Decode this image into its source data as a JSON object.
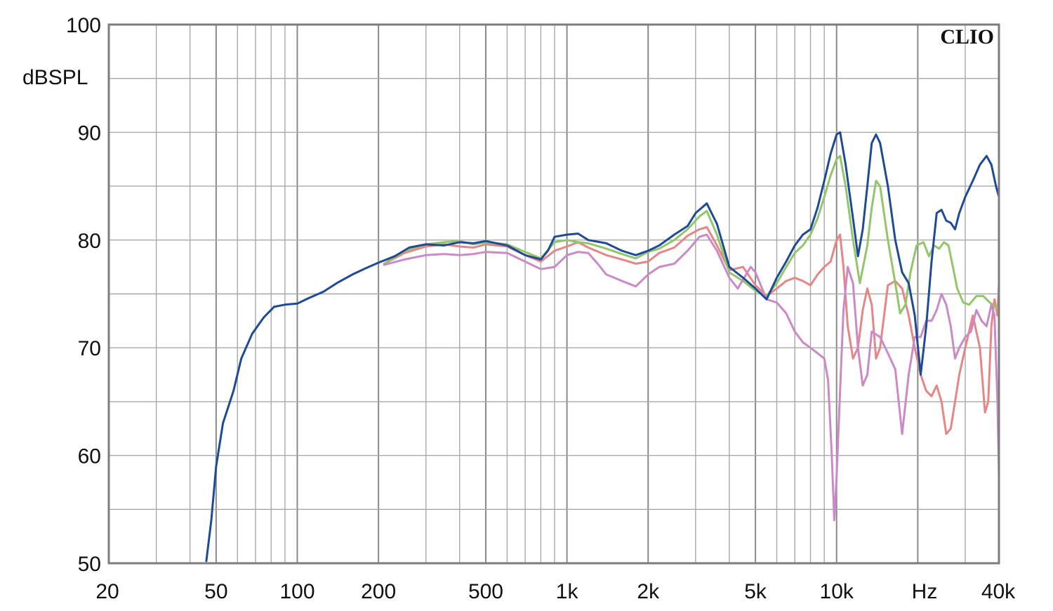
{
  "chart_data": {
    "type": "line",
    "title": "",
    "xlabel": "Hz",
    "ylabel": "dBSPL",
    "brand": "CLIO",
    "x_scale": "log",
    "xlim": [
      20,
      40000
    ],
    "ylim": [
      50,
      100
    ],
    "grid": true,
    "legend": "none",
    "x_ticks": [
      {
        "value": 20,
        "label": "20"
      },
      {
        "value": 50,
        "label": "50"
      },
      {
        "value": 100,
        "label": "100"
      },
      {
        "value": 200,
        "label": "200"
      },
      {
        "value": 500,
        "label": "500"
      },
      {
        "value": 1000,
        "label": "1k"
      },
      {
        "value": 2000,
        "label": "2k"
      },
      {
        "value": 5000,
        "label": "5k"
      },
      {
        "value": 10000,
        "label": "10k"
      },
      {
        "value": 40000,
        "label": "40k"
      }
    ],
    "y_ticks": [
      {
        "value": 100,
        "label": "100"
      },
      {
        "value": 90,
        "label": "90"
      },
      {
        "value": 80,
        "label": "80"
      },
      {
        "value": 70,
        "label": "70"
      },
      {
        "value": 60,
        "label": "60"
      },
      {
        "value": 50,
        "label": "50"
      }
    ],
    "series": [
      {
        "color": "#e88585",
        "points": [
          [
            210,
            77.8
          ],
          [
            250,
            78.8
          ],
          [
            300,
            79.4
          ],
          [
            350,
            79.6
          ],
          [
            400,
            79.4
          ],
          [
            450,
            79.3
          ],
          [
            500,
            79.6
          ],
          [
            600,
            79.4
          ],
          [
            700,
            78.6
          ],
          [
            800,
            78.0
          ],
          [
            900,
            79.0
          ],
          [
            1000,
            79.4
          ],
          [
            1100,
            79.8
          ],
          [
            1200,
            79.3
          ],
          [
            1400,
            78.6
          ],
          [
            1600,
            78.2
          ],
          [
            1800,
            77.8
          ],
          [
            2000,
            78.0
          ],
          [
            2200,
            78.8
          ],
          [
            2500,
            79.3
          ],
          [
            2800,
            80.4
          ],
          [
            3100,
            81.0
          ],
          [
            3300,
            81.2
          ],
          [
            3600,
            79.5
          ],
          [
            4000,
            77.2
          ],
          [
            4500,
            77.5
          ],
          [
            5000,
            75.8
          ],
          [
            5500,
            74.8
          ],
          [
            6000,
            75.5
          ],
          [
            6500,
            76.2
          ],
          [
            7000,
            76.5
          ],
          [
            7500,
            76.2
          ],
          [
            8000,
            75.8
          ],
          [
            8500,
            76.8
          ],
          [
            9000,
            77.5
          ],
          [
            9500,
            78.0
          ],
          [
            10000,
            80.0
          ],
          [
            10300,
            80.5
          ],
          [
            10600,
            77.5
          ],
          [
            11000,
            72.0
          ],
          [
            11500,
            69.0
          ],
          [
            12000,
            70.0
          ],
          [
            12500,
            73.5
          ],
          [
            13000,
            75.5
          ],
          [
            13500,
            74.0
          ],
          [
            14000,
            69.0
          ],
          [
            14500,
            70.0
          ],
          [
            15000,
            73.0
          ],
          [
            15500,
            75.8
          ],
          [
            16500,
            76.2
          ],
          [
            17500,
            75.5
          ],
          [
            18500,
            73.0
          ],
          [
            19500,
            70.0
          ],
          [
            20500,
            67.5
          ],
          [
            21500,
            66.0
          ],
          [
            22500,
            65.5
          ],
          [
            23500,
            66.5
          ],
          [
            24500,
            65.0
          ],
          [
            25500,
            62.0
          ],
          [
            26500,
            62.5
          ],
          [
            27500,
            65.0
          ],
          [
            28500,
            67.5
          ],
          [
            30000,
            70.0
          ],
          [
            32000,
            73.0
          ],
          [
            34000,
            70.0
          ],
          [
            35500,
            64.0
          ],
          [
            36500,
            65.0
          ],
          [
            37500,
            72.0
          ],
          [
            38500,
            74.5
          ],
          [
            39500,
            73.0
          ],
          [
            40000,
            76.0
          ]
        ]
      },
      {
        "color": "#93c56a",
        "points": [
          [
            210,
            77.8
          ],
          [
            250,
            79.0
          ],
          [
            300,
            79.6
          ],
          [
            350,
            79.8
          ],
          [
            400,
            79.9
          ],
          [
            450,
            79.6
          ],
          [
            500,
            79.8
          ],
          [
            600,
            79.6
          ],
          [
            700,
            78.9
          ],
          [
            800,
            78.3
          ],
          [
            900,
            79.8
          ],
          [
            1000,
            80.0
          ],
          [
            1100,
            79.8
          ],
          [
            1200,
            79.7
          ],
          [
            1400,
            79.2
          ],
          [
            1600,
            78.7
          ],
          [
            1800,
            78.3
          ],
          [
            2000,
            78.9
          ],
          [
            2200,
            79.2
          ],
          [
            2500,
            80.0
          ],
          [
            2800,
            81.0
          ],
          [
            3100,
            82.2
          ],
          [
            3300,
            82.7
          ],
          [
            3600,
            80.5
          ],
          [
            4000,
            77.0
          ],
          [
            4500,
            76.2
          ],
          [
            5000,
            75.3
          ],
          [
            5500,
            74.8
          ],
          [
            6000,
            76.0
          ],
          [
            6500,
            77.5
          ],
          [
            7000,
            78.8
          ],
          [
            7500,
            79.5
          ],
          [
            8000,
            80.5
          ],
          [
            8500,
            82.0
          ],
          [
            9000,
            84.0
          ],
          [
            9500,
            86.0
          ],
          [
            10000,
            87.5
          ],
          [
            10300,
            87.8
          ],
          [
            10800,
            85.0
          ],
          [
            11500,
            80.0
          ],
          [
            12200,
            76.0
          ],
          [
            13000,
            79.5
          ],
          [
            13500,
            83.0
          ],
          [
            14000,
            85.5
          ],
          [
            14500,
            85.0
          ],
          [
            15500,
            80.0
          ],
          [
            16500,
            76.0
          ],
          [
            17200,
            73.2
          ],
          [
            18000,
            74.0
          ],
          [
            18800,
            77.0
          ],
          [
            19800,
            79.5
          ],
          [
            21000,
            79.8
          ],
          [
            22000,
            78.5
          ],
          [
            23000,
            79.5
          ],
          [
            24000,
            79.2
          ],
          [
            25000,
            79.8
          ],
          [
            26000,
            79.5
          ],
          [
            27000,
            77.5
          ],
          [
            28000,
            75.5
          ],
          [
            29500,
            74.2
          ],
          [
            31000,
            74.0
          ],
          [
            33000,
            74.8
          ],
          [
            35000,
            74.8
          ],
          [
            37000,
            74.2
          ],
          [
            39000,
            73.8
          ],
          [
            40000,
            73.5
          ]
        ]
      },
      {
        "color": "#cc89c8",
        "points": [
          [
            210,
            77.7
          ],
          [
            250,
            78.2
          ],
          [
            300,
            78.6
          ],
          [
            350,
            78.7
          ],
          [
            400,
            78.6
          ],
          [
            450,
            78.7
          ],
          [
            500,
            78.9
          ],
          [
            600,
            78.8
          ],
          [
            700,
            78.0
          ],
          [
            800,
            77.3
          ],
          [
            900,
            77.5
          ],
          [
            1000,
            78.6
          ],
          [
            1100,
            78.9
          ],
          [
            1200,
            78.8
          ],
          [
            1300,
            77.8
          ],
          [
            1400,
            76.8
          ],
          [
            1500,
            76.5
          ],
          [
            1600,
            76.2
          ],
          [
            1800,
            75.7
          ],
          [
            2000,
            76.8
          ],
          [
            2200,
            77.5
          ],
          [
            2500,
            77.8
          ],
          [
            2800,
            79.0
          ],
          [
            3100,
            80.3
          ],
          [
            3300,
            80.5
          ],
          [
            3600,
            79.0
          ],
          [
            4000,
            76.5
          ],
          [
            4300,
            75.5
          ],
          [
            4800,
            77.5
          ],
          [
            5000,
            77.0
          ],
          [
            5500,
            74.5
          ],
          [
            6000,
            74.2
          ],
          [
            6500,
            73.2
          ],
          [
            7000,
            71.5
          ],
          [
            7500,
            70.5
          ],
          [
            8000,
            70.0
          ],
          [
            8500,
            69.5
          ],
          [
            9000,
            69.0
          ],
          [
            9300,
            67.0
          ],
          [
            9600,
            60.0
          ],
          [
            9800,
            54.0
          ],
          [
            10000,
            58.0
          ],
          [
            10300,
            66.0
          ],
          [
            10600,
            73.5
          ],
          [
            11000,
            77.5
          ],
          [
            11500,
            76.0
          ],
          [
            12000,
            70.0
          ],
          [
            12500,
            66.5
          ],
          [
            13000,
            67.5
          ],
          [
            13500,
            71.5
          ],
          [
            14500,
            71.0
          ],
          [
            15500,
            69.5
          ],
          [
            16500,
            68.0
          ],
          [
            17500,
            62.0
          ],
          [
            18500,
            67.5
          ],
          [
            19500,
            71.0
          ],
          [
            20500,
            71.0
          ],
          [
            21500,
            72.5
          ],
          [
            22500,
            72.5
          ],
          [
            23500,
            73.5
          ],
          [
            24500,
            75.0
          ],
          [
            25500,
            74.0
          ],
          [
            26500,
            72.0
          ],
          [
            27500,
            69.0
          ],
          [
            28500,
            70.0
          ],
          [
            30000,
            71.0
          ],
          [
            31500,
            71.5
          ],
          [
            33000,
            73.5
          ],
          [
            34500,
            72.5
          ],
          [
            36000,
            72.0
          ],
          [
            37500,
            74.0
          ],
          [
            38500,
            73.0
          ],
          [
            39500,
            65.0
          ],
          [
            40000,
            58.0
          ]
        ]
      },
      {
        "color": "#1f4a98",
        "points": [
          [
            46,
            50.2
          ],
          [
            48,
            54.0
          ],
          [
            50,
            59.0
          ],
          [
            53,
            63.0
          ],
          [
            58,
            66.0
          ],
          [
            62,
            69.0
          ],
          [
            68,
            71.3
          ],
          [
            75,
            72.8
          ],
          [
            82,
            73.8
          ],
          [
            90,
            74.0
          ],
          [
            100,
            74.1
          ],
          [
            110,
            74.6
          ],
          [
            125,
            75.2
          ],
          [
            140,
            76.0
          ],
          [
            160,
            76.8
          ],
          [
            180,
            77.4
          ],
          [
            200,
            77.9
          ],
          [
            230,
            78.5
          ],
          [
            260,
            79.3
          ],
          [
            300,
            79.6
          ],
          [
            350,
            79.5
          ],
          [
            400,
            79.8
          ],
          [
            450,
            79.7
          ],
          [
            500,
            79.9
          ],
          [
            600,
            79.5
          ],
          [
            700,
            78.6
          ],
          [
            800,
            78.2
          ],
          [
            850,
            79.0
          ],
          [
            900,
            80.3
          ],
          [
            1000,
            80.5
          ],
          [
            1100,
            80.6
          ],
          [
            1200,
            80.0
          ],
          [
            1400,
            79.7
          ],
          [
            1600,
            79.0
          ],
          [
            1800,
            78.6
          ],
          [
            2000,
            79.0
          ],
          [
            2200,
            79.5
          ],
          [
            2500,
            80.5
          ],
          [
            2800,
            81.3
          ],
          [
            3000,
            82.5
          ],
          [
            3300,
            83.4
          ],
          [
            3600,
            81.5
          ],
          [
            4000,
            77.5
          ],
          [
            4500,
            76.5
          ],
          [
            5000,
            75.5
          ],
          [
            5500,
            74.5
          ],
          [
            6000,
            76.5
          ],
          [
            6500,
            78.0
          ],
          [
            7000,
            79.5
          ],
          [
            7500,
            80.5
          ],
          [
            8000,
            81.0
          ],
          [
            8500,
            83.0
          ],
          [
            9000,
            85.5
          ],
          [
            9500,
            88.0
          ],
          [
            10000,
            89.8
          ],
          [
            10300,
            90.0
          ],
          [
            10800,
            87.0
          ],
          [
            11500,
            82.0
          ],
          [
            12000,
            78.5
          ],
          [
            12500,
            81.0
          ],
          [
            13000,
            85.0
          ],
          [
            13500,
            89.0
          ],
          [
            14000,
            89.8
          ],
          [
            14500,
            89.0
          ],
          [
            15500,
            85.0
          ],
          [
            16500,
            80.0
          ],
          [
            17500,
            77.0
          ],
          [
            18500,
            76.0
          ],
          [
            19500,
            73.0
          ],
          [
            20500,
            67.5
          ],
          [
            21500,
            72.0
          ],
          [
            22500,
            78.0
          ],
          [
            23500,
            82.5
          ],
          [
            24500,
            82.8
          ],
          [
            25500,
            81.8
          ],
          [
            26500,
            81.6
          ],
          [
            27500,
            81.0
          ],
          [
            28500,
            82.5
          ],
          [
            30000,
            84.0
          ],
          [
            32000,
            85.5
          ],
          [
            34000,
            87.0
          ],
          [
            36000,
            87.8
          ],
          [
            37500,
            87.0
          ],
          [
            39000,
            85.0
          ],
          [
            40000,
            84.0
          ]
        ]
      }
    ]
  }
}
